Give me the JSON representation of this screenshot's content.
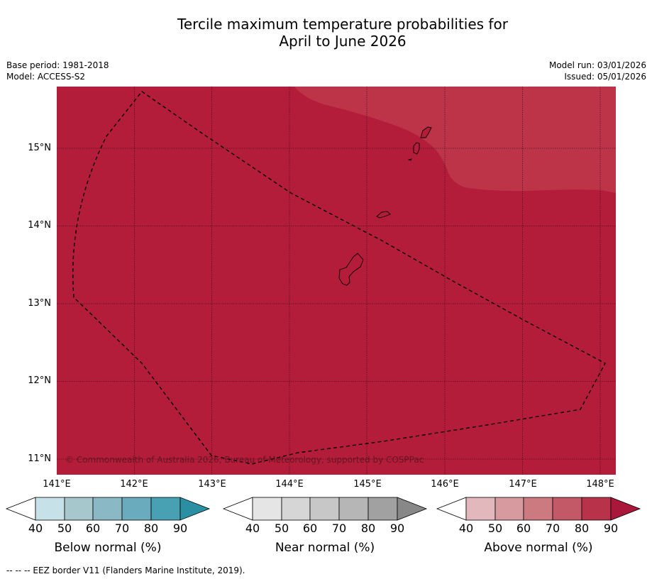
{
  "title": {
    "line1": "Tercile maximum temperature probabilities for",
    "line2": "April to June 2026"
  },
  "meta": {
    "base_period": "Base period: 1981-2018",
    "model": "Model: ACCESS-S2",
    "model_run": "Model run: 03/01/2026",
    "issued": "Issued: 05/01/2026"
  },
  "map": {
    "latitude_labels": [
      "15°N",
      "14°N",
      "13°N",
      "12°N",
      "11°N"
    ],
    "longitude_labels": [
      "141°E",
      "142°E",
      "143°E",
      "144°E",
      "145°E",
      "146°E",
      "147°E",
      "148°E"
    ],
    "copyright": "© Commonwealth of Australia 2026, Bureau of Meteorology, supported by COSPPac",
    "colors": {
      "main_fill": "#b31d3a",
      "upper_right_fill": "#bd3449",
      "eez_border": "#000000"
    }
  },
  "legends": [
    {
      "label": "Below normal (%)",
      "ticks": [
        "40",
        "50",
        "60",
        "70",
        "80",
        "90"
      ],
      "colors": [
        "#ffffff",
        "#c6e2e8",
        "#a6c7cc",
        "#8ab8c4",
        "#6aabbd",
        "#48a1b2",
        "#2b8fa4"
      ]
    },
    {
      "label": "Near normal (%)",
      "ticks": [
        "40",
        "50",
        "60",
        "70",
        "80",
        "90"
      ],
      "colors": [
        "#ffffff",
        "#e5e5e5",
        "#d6d6d6",
        "#c7c7c7",
        "#b6b6b6",
        "#a1a1a1",
        "#888888"
      ]
    },
    {
      "label": "Above normal (%)",
      "ticks": [
        "40",
        "50",
        "60",
        "70",
        "80",
        "90"
      ],
      "colors": [
        "#ffffff",
        "#e2b8bd",
        "#d69a9f",
        "#cc7a80",
        "#c35866",
        "#b83349",
        "#a9173a"
      ]
    }
  ],
  "footnote": "--  --  -- EEZ border V11 (Flanders Marine Institute, 2019)."
}
